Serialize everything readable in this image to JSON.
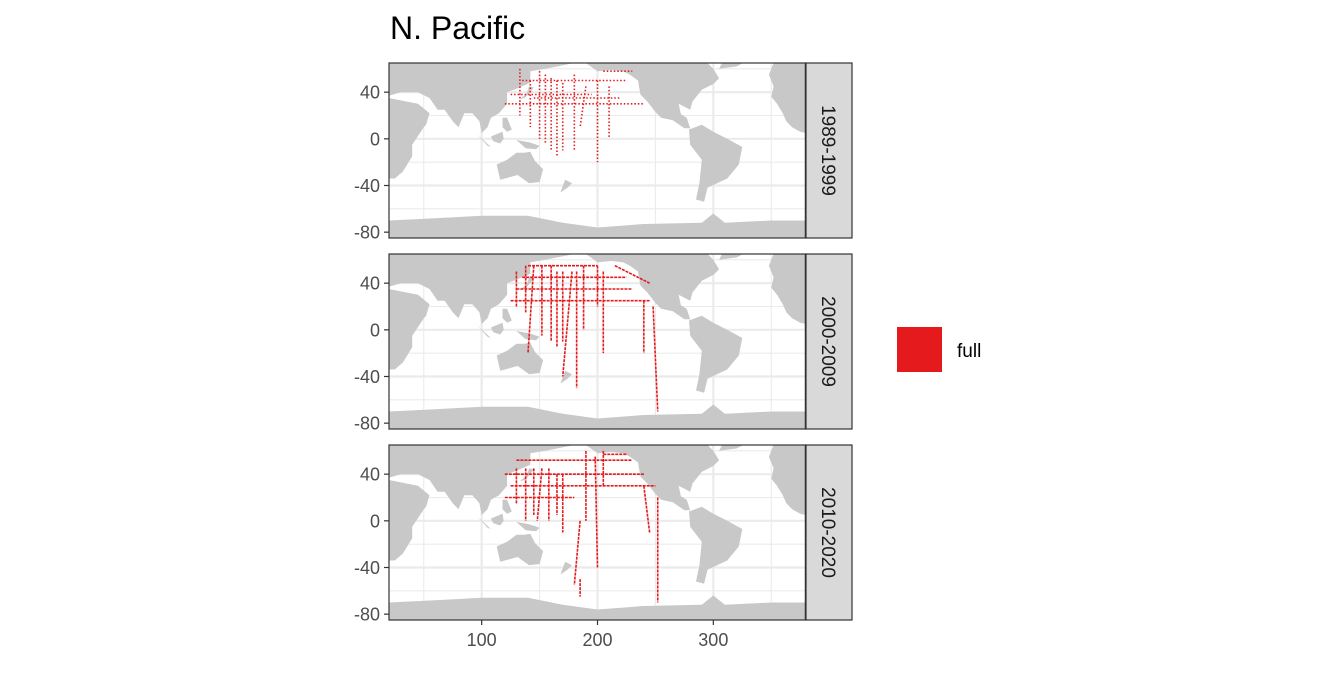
{
  "title": "N. Pacific",
  "legend": {
    "entries": [
      {
        "label": "full",
        "color": "#E41A1C"
      }
    ]
  },
  "colors": {
    "land": "#C8C8C8",
    "grid": "#EBEBEB",
    "strip_bg": "#D9D9D9",
    "track": "#E41A1C",
    "border": "#333333",
    "axis_text": "#4D4D4D"
  },
  "chart_data": {
    "type": "map",
    "x_ticks": [
      "100",
      "200",
      "300"
    ],
    "y_ticks": [
      "40",
      "0",
      "-40",
      "-80"
    ],
    "xlim": [
      20,
      380
    ],
    "ylim": [
      -85,
      65
    ],
    "panels": [
      {
        "label": "1989-1999",
        "tracks": [
          [
            [
              120,
              30
            ],
            [
              240,
              30
            ]
          ],
          [
            [
              125,
              38
            ],
            [
              195,
              38
            ]
          ],
          [
            [
              135,
              50
            ],
            [
              225,
              50
            ]
          ],
          [
            [
              145,
              35
            ],
            [
              220,
              35
            ]
          ],
          [
            [
              133,
              60
            ],
            [
              133,
              20
            ]
          ],
          [
            [
              142,
              50
            ],
            [
              142,
              10
            ]
          ],
          [
            [
              150,
              58
            ],
            [
              150,
              0
            ]
          ],
          [
            [
              155,
              55
            ],
            [
              155,
              -5
            ]
          ],
          [
            [
              160,
              52
            ],
            [
              160,
              -10
            ]
          ],
          [
            [
              165,
              50
            ],
            [
              165,
              -15
            ]
          ],
          [
            [
              170,
              48
            ],
            [
              170,
              -10
            ]
          ],
          [
            [
              180,
              55
            ],
            [
              180,
              -10
            ]
          ],
          [
            [
              190,
              45
            ],
            [
              185,
              10
            ]
          ],
          [
            [
              200,
              50
            ],
            [
              200,
              -20
            ]
          ],
          [
            [
              210,
              45
            ],
            [
              210,
              0
            ]
          ],
          [
            [
              205,
              58
            ],
            [
              230,
              58
            ]
          ]
        ]
      },
      {
        "label": "2000-2009",
        "tracks": [
          [
            [
              125,
              25
            ],
            [
              245,
              25
            ]
          ],
          [
            [
              130,
              35
            ],
            [
              230,
              35
            ]
          ],
          [
            [
              135,
              45
            ],
            [
              225,
              45
            ]
          ],
          [
            [
              140,
              55
            ],
            [
              200,
              55
            ]
          ],
          [
            [
              130,
              50
            ],
            [
              130,
              20
            ]
          ],
          [
            [
              138,
              55
            ],
            [
              138,
              15
            ]
          ],
          [
            [
              145,
              55
            ],
            [
              140,
              -20
            ]
          ],
          [
            [
              152,
              55
            ],
            [
              152,
              -5
            ]
          ],
          [
            [
              160,
              55
            ],
            [
              160,
              -10
            ]
          ],
          [
            [
              165,
              50
            ],
            [
              165,
              -15
            ]
          ],
          [
            [
              170,
              50
            ],
            [
              170,
              -10
            ]
          ],
          [
            [
              178,
              50
            ],
            [
              170,
              -40
            ]
          ],
          [
            [
              182,
              50
            ],
            [
              182,
              -50
            ]
          ],
          [
            [
              188,
              55
            ],
            [
              188,
              0
            ]
          ],
          [
            [
              200,
              55
            ],
            [
              200,
              20
            ]
          ],
          [
            [
              205,
              50
            ],
            [
              205,
              -20
            ]
          ],
          [
            [
              240,
              25
            ],
            [
              240,
              -20
            ]
          ],
          [
            [
              248,
              20
            ],
            [
              252,
              -70
            ]
          ],
          [
            [
              215,
              55
            ],
            [
              245,
              40
            ]
          ]
        ]
      },
      {
        "label": "2010-2020",
        "tracks": [
          [
            [
              120,
              40
            ],
            [
              240,
              40
            ]
          ],
          [
            [
              125,
              30
            ],
            [
              250,
              30
            ]
          ],
          [
            [
              120,
              20
            ],
            [
              180,
              20
            ]
          ],
          [
            [
              130,
              52
            ],
            [
              230,
              52
            ]
          ],
          [
            [
              205,
              57
            ],
            [
              225,
              57
            ]
          ],
          [
            [
              130,
              45
            ],
            [
              130,
              15
            ]
          ],
          [
            [
              138,
              45
            ],
            [
              138,
              0
            ]
          ],
          [
            [
              145,
              45
            ],
            [
              145,
              5
            ]
          ],
          [
            [
              152,
              45
            ],
            [
              148,
              0
            ]
          ],
          [
            [
              158,
              45
            ],
            [
              158,
              0
            ]
          ],
          [
            [
              165,
              40
            ],
            [
              165,
              5
            ]
          ],
          [
            [
              170,
              40
            ],
            [
              170,
              -10
            ]
          ],
          [
            [
              185,
              0
            ],
            [
              180,
              -55
            ]
          ],
          [
            [
              190,
              60
            ],
            [
              190,
              0
            ]
          ],
          [
            [
              198,
              55
            ],
            [
              200,
              -40
            ]
          ],
          [
            [
              205,
              60
            ],
            [
              205,
              30
            ]
          ],
          [
            [
              240,
              30
            ],
            [
              245,
              -10
            ]
          ],
          [
            [
              252,
              20
            ],
            [
              252,
              -70
            ]
          ],
          [
            [
              185,
              -50
            ],
            [
              185,
              -65
            ]
          ]
        ]
      }
    ]
  }
}
